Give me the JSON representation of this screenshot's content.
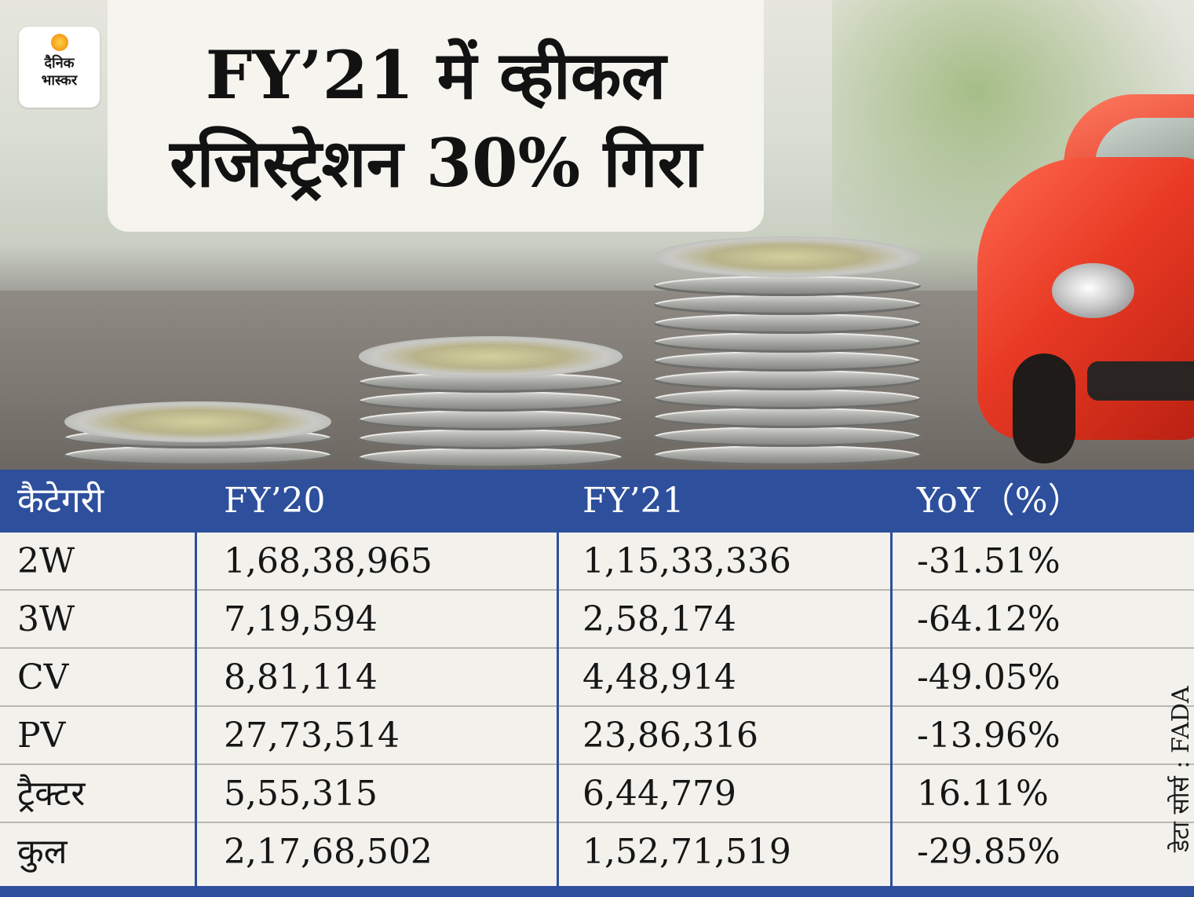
{
  "brand": {
    "logo_line1": "दैनिक",
    "logo_line2": "भास्कर",
    "logo_color": "#f7a21b"
  },
  "title": {
    "line1": "FY’21 में व्हीकल",
    "line2": "रजिस्ट्रेशन 30% गिरा"
  },
  "colors": {
    "header_bg": "#2d4f9c",
    "row_bg": "#f2f1ec",
    "text": "#161616"
  },
  "source": "डेटा सोर्स : FADA",
  "chart_data": {
    "type": "table",
    "columns": [
      "कैटेगरी",
      "FY’20",
      "FY’21",
      "YoY（%）"
    ],
    "rows": [
      {
        "category": "2W",
        "fy20": "1,68,38,965",
        "fy21": "1,15,33,336",
        "yoy": "-31.51%"
      },
      {
        "category": "3W",
        "fy20": "7,19,594",
        "fy21": "2,58,174",
        "yoy": "-64.12%"
      },
      {
        "category": "CV",
        "fy20": "8,81,114",
        "fy21": "4,48,914",
        "yoy": "-49.05%"
      },
      {
        "category": "PV",
        "fy20": "27,73,514",
        "fy21": "23,86,316",
        "yoy": "-13.96%"
      },
      {
        "category": "ट्रैक्टर",
        "fy20": "5,55,315",
        "fy21": "6,44,779",
        "yoy": "16.11%"
      },
      {
        "category": "कुल",
        "fy20": "2,17,68,502",
        "fy21": "1,52,71,519",
        "yoy": "-29.85%"
      }
    ]
  }
}
